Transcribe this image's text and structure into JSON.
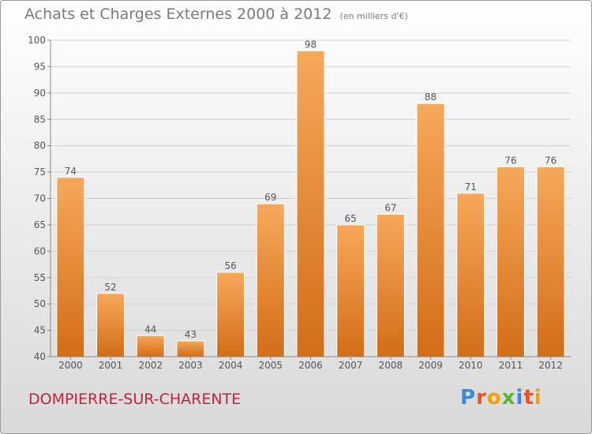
{
  "page": {
    "background": "#eeeeee",
    "accent": "#f09a3e"
  },
  "header": {
    "title": "Achats et Charges Externes 2000 à 2012",
    "subtitle": "(en milliers d'€)"
  },
  "footer": {
    "city": "DOMPIERRE-SUR-CHARENTE",
    "logo": "Proxiti"
  },
  "chart_data": {
    "type": "bar",
    "title": "Achats et Charges Externes 2000 à 2012",
    "subtitle": "(en milliers d'€)",
    "categories": [
      "2000",
      "2001",
      "2002",
      "2003",
      "2004",
      "2005",
      "2006",
      "2007",
      "2008",
      "2009",
      "2010",
      "2011",
      "2012"
    ],
    "values": [
      74,
      52,
      44,
      43,
      56,
      69,
      98,
      65,
      67,
      88,
      71,
      76,
      76
    ],
    "data_labels": [
      "74",
      "52",
      "44",
      "43",
      "56",
      "69",
      "98",
      "65",
      "67",
      "88",
      "71",
      "76",
      "76"
    ],
    "ylim": [
      40,
      100
    ],
    "yticks": [
      "40",
      "45",
      "50",
      "55",
      "60",
      "65",
      "70",
      "75",
      "80",
      "85",
      "90",
      "95",
      "100"
    ],
    "grid": true,
    "bar_color_top": "#f7a85a",
    "bar_color_bottom": "#d36d17"
  }
}
